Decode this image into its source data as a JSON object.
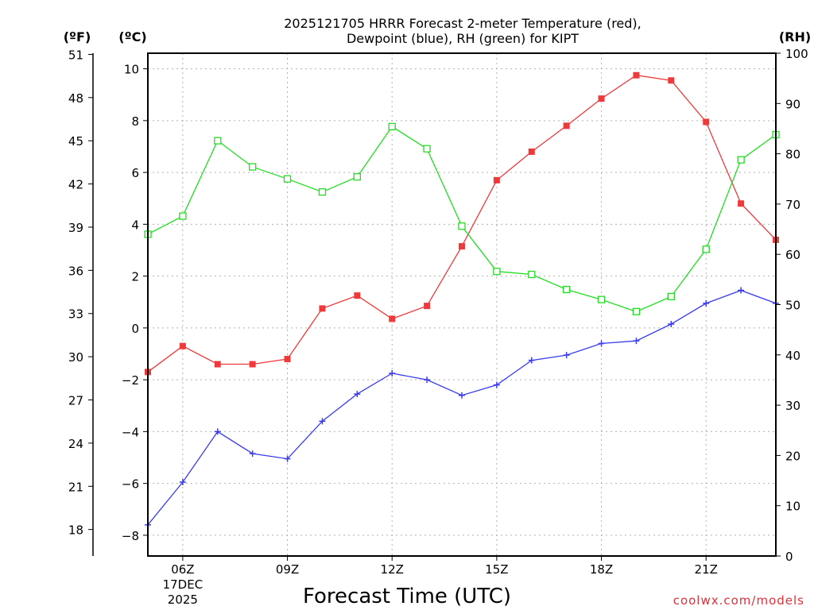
{
  "chart_data": {
    "type": "line",
    "title_lines": [
      "2025121705 HRRR Forecast 2-meter Temperature (red),",
      "Dewpoint (blue), RH (green) for KIPT"
    ],
    "xlabel": "Forecast Time (UTC)",
    "credit": "coolwx.com/models",
    "unit_labels": {
      "fahrenheit": "(ºF)",
      "celsius": "(ºC)",
      "rh": "(RH)"
    },
    "x_hours": [
      5,
      6,
      7,
      8,
      9,
      10,
      11,
      12,
      13,
      14,
      15,
      16,
      17,
      18,
      19,
      20,
      21,
      22,
      23
    ],
    "xlim": [
      5,
      23
    ],
    "x_ticks": [
      {
        "hour": 6,
        "label": "06Z",
        "sub": [
          "17DEC",
          "2025"
        ]
      },
      {
        "hour": 9,
        "label": "09Z"
      },
      {
        "hour": 12,
        "label": "12Z"
      },
      {
        "hour": 15,
        "label": "15Z"
      },
      {
        "hour": 18,
        "label": "18Z"
      },
      {
        "hour": 21,
        "label": "21Z"
      }
    ],
    "celsius_axis": {
      "range": [
        -8.8,
        10.6
      ],
      "ticks": [
        -8,
        -6,
        -4,
        -2,
        0,
        2,
        4,
        6,
        8,
        10
      ]
    },
    "fahrenheit_axis": {
      "ticks": [
        18,
        21,
        24,
        27,
        30,
        33,
        36,
        39,
        42,
        45,
        48,
        51
      ]
    },
    "rh_axis": {
      "range": [
        0,
        100
      ],
      "ticks": [
        0,
        10,
        20,
        30,
        40,
        50,
        60,
        70,
        80,
        90,
        100
      ]
    },
    "series": [
      {
        "name": "Temperature",
        "unit": "C",
        "color": "#ee3a3a",
        "marker": "filled-square",
        "values": [
          -1.7,
          -0.7,
          -1.4,
          -1.4,
          -1.2,
          0.75,
          1.25,
          0.35,
          0.85,
          3.15,
          5.7,
          6.8,
          7.8,
          8.85,
          9.75,
          9.55,
          7.95,
          4.8,
          3.4
        ]
      },
      {
        "name": "Dewpoint",
        "unit": "C",
        "color": "#3a3aee",
        "marker": "plus",
        "values": [
          -7.6,
          -5.95,
          -4.0,
          -4.85,
          -5.05,
          -3.6,
          -2.55,
          -1.75,
          -2.0,
          -2.6,
          -2.2,
          -1.25,
          -1.05,
          -0.6,
          -0.5,
          0.15,
          0.95,
          1.45,
          0.95
        ]
      },
      {
        "name": "RH",
        "unit": "%",
        "color": "#22dd22",
        "marker": "open-square",
        "values": [
          64,
          67.6,
          82.6,
          77.4,
          75,
          72.4,
          75.4,
          85.4,
          81,
          65.6,
          56.6,
          56,
          53,
          51,
          48.6,
          51.6,
          61,
          78.8,
          83.8
        ]
      }
    ],
    "grid": true
  }
}
